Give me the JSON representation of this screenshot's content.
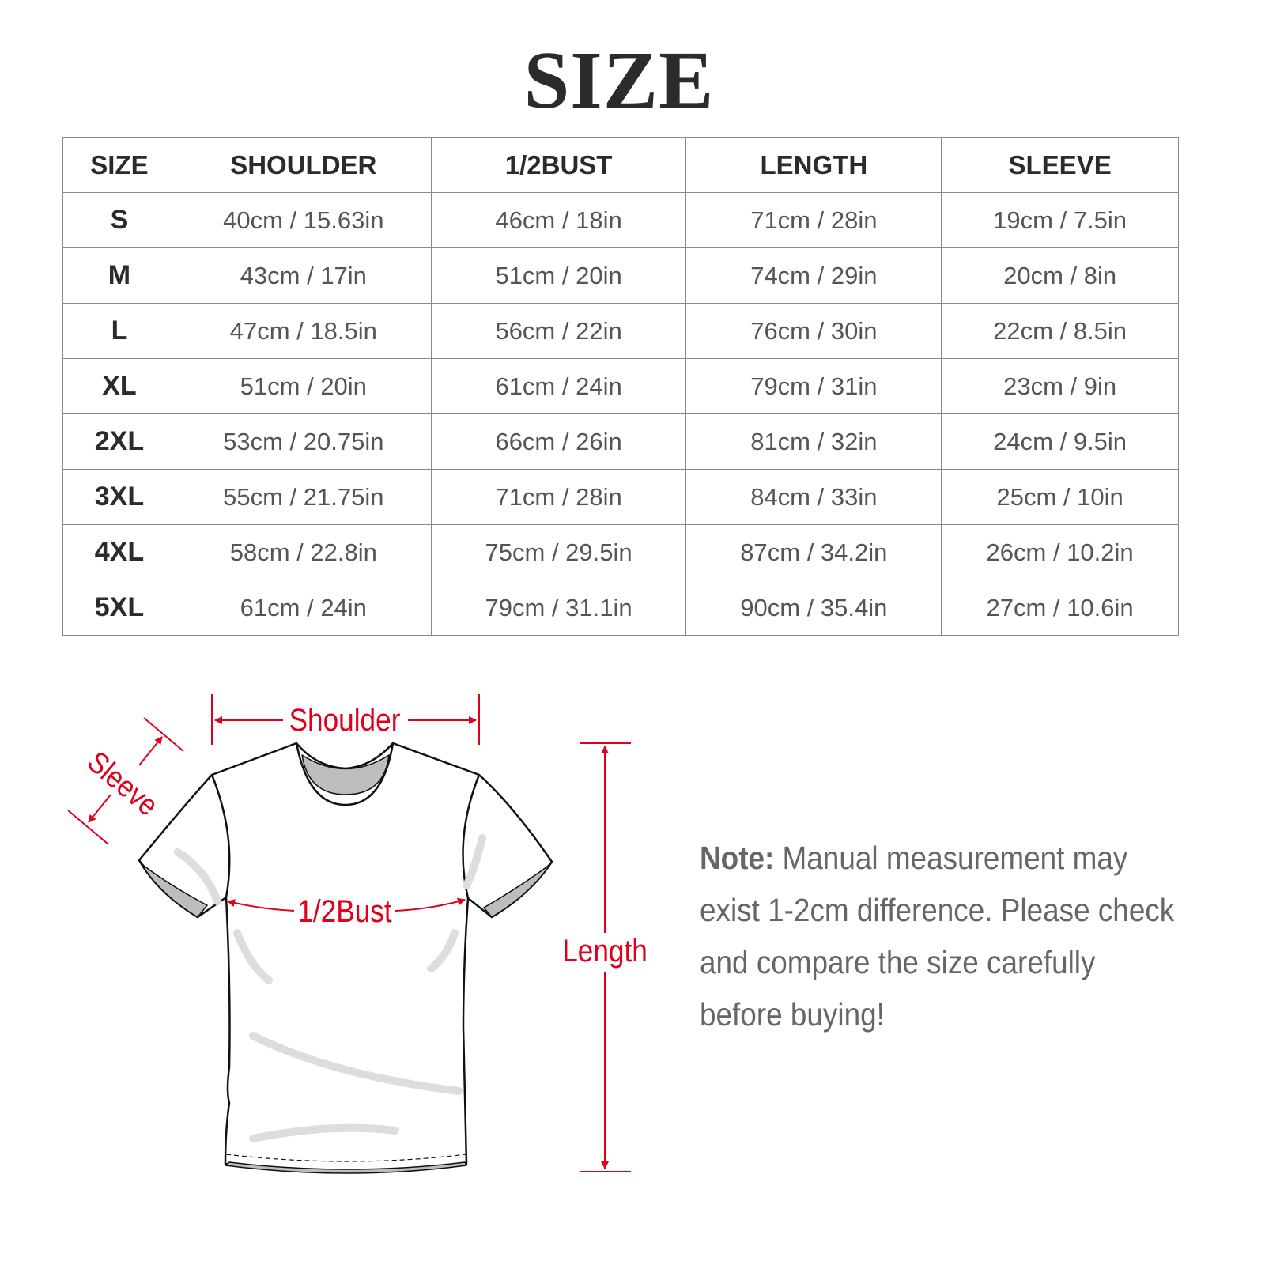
{
  "title": "SIZE",
  "table": {
    "headers": [
      "SIZE",
      "SHOULDER",
      "1/2BUST",
      "LENGTH",
      "SLEEVE"
    ],
    "rows": [
      [
        "S",
        "40cm / 15.63in",
        "46cm / 18in",
        "71cm / 28in",
        "19cm / 7.5in"
      ],
      [
        "M",
        "43cm / 17in",
        "51cm / 20in",
        "74cm / 29in",
        "20cm / 8in"
      ],
      [
        "L",
        "47cm / 18.5in",
        "56cm / 22in",
        "76cm / 30in",
        "22cm / 8.5in"
      ],
      [
        "XL",
        "51cm / 20in",
        "61cm / 24in",
        "79cm / 31in",
        "23cm / 9in"
      ],
      [
        "2XL",
        "53cm / 20.75in",
        "66cm / 26in",
        "81cm / 32in",
        "24cm / 9.5in"
      ],
      [
        "3XL",
        "55cm / 21.75in",
        "71cm / 28in",
        "84cm / 33in",
        "25cm / 10in"
      ],
      [
        "4XL",
        "58cm / 22.8in",
        "75cm / 29.5in",
        "87cm / 34.2in",
        "26cm / 10.2in"
      ],
      [
        "5XL",
        "61cm / 24in",
        "79cm / 31.1in",
        "90cm / 35.4in",
        "27cm / 10.6in"
      ]
    ]
  },
  "diagram": {
    "shoulder_label": "Shoulder",
    "sleeve_label": "Sleeve",
    "bust_label": "1/2Bust",
    "length_label": "Length",
    "accent_color": "#e0001b"
  },
  "note": {
    "prefix": "Note:",
    "text": " Manual measurement may exist 1-2cm difference. Please check and compare the size carefully before buying!"
  }
}
